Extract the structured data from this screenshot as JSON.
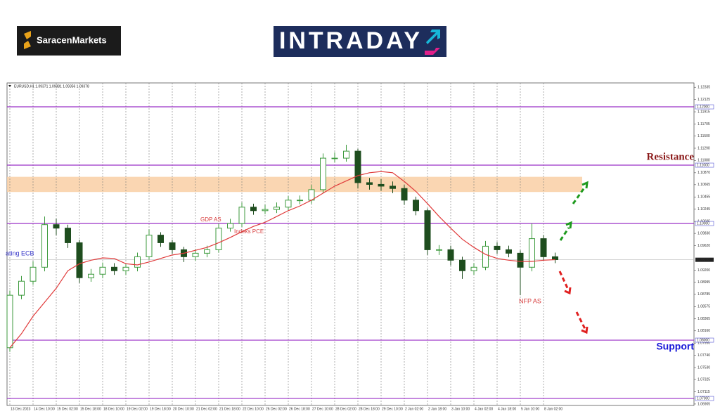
{
  "brand": "SaracenMarkets",
  "banner": "INTRADAY",
  "chart_data": {
    "type": "candlestick",
    "title": "EURUSD,H1 1.09371 1.09381 1.09356 1.09378",
    "categories": [
      "13 Dec 2023",
      null,
      "14 Dec 10:00",
      null,
      "15 Dec 02:00",
      null,
      "15 Dec 18:00",
      null,
      "18 Dec 10:00",
      null,
      "19 Dec 02:00",
      null,
      "19 Dec 18:00",
      null,
      "20 Dec 10:00",
      null,
      "21 Dec 02:00",
      null,
      "21 Dec 18:00",
      null,
      "22 Dec 10:00",
      null,
      "26 Dec 02:00",
      null,
      "26 Dec 18:00",
      null,
      "27 Dec 10:00",
      null,
      "28 Dec 02:00",
      null,
      "28 Dec 18:00",
      null,
      "29 Dec 10:00",
      null,
      "2 Jan 02:00",
      null,
      "2 Jan 18:00",
      null,
      "3 Jan 10:00",
      null,
      "4 Jan 02:00",
      null,
      "4 Jan 18:00",
      null,
      "5 Jan 10:00",
      null,
      "8 Jan 02:00",
      null
    ],
    "open": [
      1.0787,
      1.0877,
      1.0901,
      1.0925,
      1.0998,
      1.0992,
      1.0967,
      1.0907,
      1.0913,
      1.0925,
      1.0919,
      1.0925,
      1.0943,
      1.098,
      1.0967,
      1.0955,
      1.0943,
      1.0949,
      1.0955,
      1.0992,
      1.1,
      1.1028,
      1.1022,
      1.1024,
      1.1028,
      1.104,
      1.104,
      1.1058,
      1.1112,
      1.1112,
      1.1124,
      1.107,
      1.1067,
      1.1064,
      1.106,
      1.104,
      1.1022,
      1.0955,
      1.0955,
      1.0937,
      1.0919,
      1.0925,
      1.0961,
      1.0955,
      1.0949,
      1.0925,
      1.0974,
      1.0943
    ],
    "high": [
      1.0885,
      1.091,
      1.0935,
      1.1012,
      1.1008,
      1.0998,
      1.0972,
      1.0922,
      1.0933,
      1.0932,
      1.0931,
      1.095,
      1.099,
      1.0985,
      1.0972,
      1.096,
      1.0956,
      1.0962,
      1.1,
      1.1008,
      1.1036,
      1.1034,
      1.1032,
      1.1036,
      1.1047,
      1.1048,
      1.1066,
      1.112,
      1.1122,
      1.1135,
      1.1128,
      1.1078,
      1.1076,
      1.1072,
      1.1066,
      1.1046,
      1.1026,
      1.0963,
      1.0962,
      1.0943,
      1.0932,
      1.097,
      1.0968,
      1.0962,
      1.0954,
      1.1,
      1.098,
      1.095
    ],
    "low": [
      1.078,
      1.087,
      1.0895,
      1.0918,
      1.098,
      1.0958,
      1.0898,
      1.09,
      1.0906,
      1.0912,
      1.0912,
      1.0918,
      1.0938,
      1.096,
      1.0948,
      1.0934,
      1.0936,
      1.0942,
      1.095,
      1.0986,
      1.0994,
      1.1015,
      1.1016,
      1.1018,
      1.1022,
      1.1033,
      1.1034,
      1.1052,
      1.1105,
      1.1106,
      1.106,
      1.1058,
      1.1056,
      1.1052,
      1.1032,
      1.1014,
      1.0946,
      1.0946,
      1.0928,
      1.0905,
      1.0912,
      1.092,
      1.0948,
      1.0942,
      1.0877,
      1.0918,
      1.0936,
      1.0932
    ],
    "close": [
      1.0877,
      1.0901,
      1.0925,
      1.0998,
      1.0992,
      1.0967,
      1.0907,
      1.0913,
      1.0925,
      1.0919,
      1.0925,
      1.0943,
      1.098,
      1.0967,
      1.0955,
      1.0943,
      1.0949,
      1.0955,
      1.0992,
      1.1,
      1.1028,
      1.1022,
      1.1024,
      1.1028,
      1.104,
      1.104,
      1.1058,
      1.1112,
      1.1112,
      1.1124,
      1.107,
      1.1067,
      1.1064,
      1.106,
      1.104,
      1.1022,
      1.0955,
      1.0955,
      1.0937,
      1.0919,
      1.0925,
      1.0961,
      1.0955,
      1.0949,
      1.0925,
      1.0974,
      1.0943,
      1.0938
    ],
    "up_color": "#3c9a3c",
    "down_color": "#1e4d1e",
    "ma": {
      "color": "#e03a3a",
      "values": [
        1.0787,
        1.0811,
        1.0841,
        1.0865,
        1.0889,
        1.0919,
        1.0931,
        1.0937,
        1.0941,
        1.094,
        1.0931,
        1.0929,
        1.0934,
        1.094,
        1.0946,
        1.0949,
        1.0954,
        1.0959,
        1.0967,
        1.0976,
        1.0986,
        1.0995,
        1.1002,
        1.1012,
        1.1022,
        1.103,
        1.104,
        1.1052,
        1.1064,
        1.1073,
        1.1082,
        1.1087,
        1.1089,
        1.1087,
        1.1072,
        1.1055,
        1.1034,
        1.1012,
        1.0992,
        1.0973,
        1.0959,
        1.0947,
        1.094,
        1.0937,
        1.0935,
        1.0935,
        1.0937,
        1.0938
      ]
    },
    "ylim": [
      1.0688,
      1.1241
    ],
    "yticks": [
      1.12335,
      1.12125,
      1.11915,
      1.11705,
      {
        "value": 1.115,
        "label": "1.11500"
      },
      {
        "value": 1.1129,
        "label": "1.11290"
      },
      {
        "value": 1.1108,
        "label": "1.11080"
      },
      {
        "value": 1.1087,
        "label": "1.10870"
      },
      1.10665,
      1.10455,
      1.10245,
      1.10035,
      {
        "value": 1.0983,
        "label": "1.09830"
      },
      {
        "value": 1.0962,
        "label": "1.09620"
      },
      {
        "value": 1.092,
        "label": "1.09200"
      },
      1.08995,
      1.08785,
      1.08575,
      1.08365,
      {
        "value": 1.0816,
        "label": "1.08160"
      },
      {
        "value": 1.0795,
        "label": "1.07950"
      },
      {
        "value": 1.0774,
        "label": "1.07740"
      },
      {
        "value": 1.0753,
        "label": "1.07530"
      },
      1.07325,
      1.07115,
      1.06905
    ],
    "levels": [
      {
        "value": 1.12,
        "label": "1.12000"
      },
      {
        "value": 1.11,
        "label": "1.11000"
      },
      {
        "value": 1.1,
        "label": "1.10000"
      },
      {
        "value": 1.08,
        "label": "1.08000"
      },
      {
        "value": 1.07,
        "label": "1.07000"
      }
    ],
    "level_color": "#9b30c8",
    "price_line": 1.09378,
    "zone": [
      1.1054,
      1.108
    ],
    "zone_color": "#f9cfa5",
    "annotations": [
      {
        "text": "Resistance",
        "color": "#8b1a1a"
      },
      {
        "text": "Support",
        "color": "#1818d8"
      },
      {
        "text": "GDP AS",
        "color": "#d84040"
      },
      {
        "text": "Indeks PCE",
        "color": "#d84040"
      },
      {
        "text": "NFP AS",
        "color": "#d84040"
      },
      {
        "text": "ating ECB",
        "color": "#3535c8"
      }
    ]
  }
}
